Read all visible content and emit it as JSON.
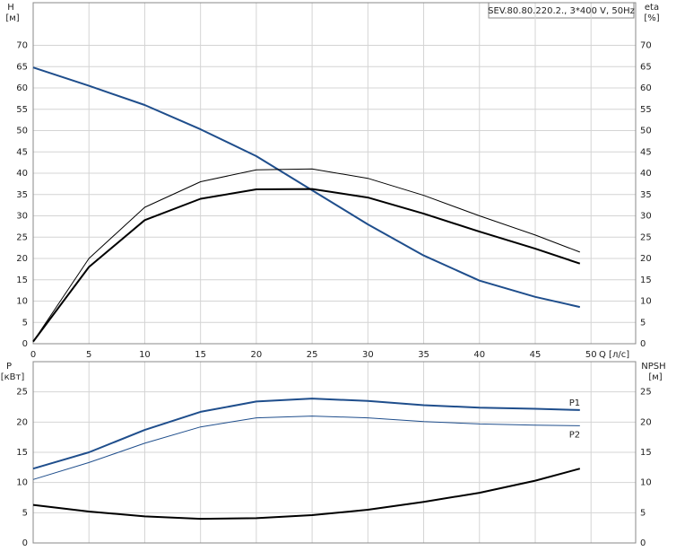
{
  "chart_data": [
    {
      "type": "line",
      "title": "SEV.80.80.220.2., 3*400 V, 50Hz",
      "y_label": "H",
      "y_unit": "[м]",
      "y2_label": "eta",
      "y2_unit": "[%]",
      "x_label": "Q [л/с]",
      "x": [
        0,
        5,
        10,
        15,
        20,
        25,
        30,
        35,
        40,
        45,
        49
      ],
      "xlim": [
        0,
        54
      ],
      "xticks": [
        0,
        5,
        10,
        15,
        20,
        25,
        30,
        35,
        40,
        45,
        50
      ],
      "ylim": [
        0,
        80
      ],
      "yticks": [
        0,
        5,
        10,
        15,
        20,
        25,
        30,
        35,
        40,
        45,
        50,
        55,
        60,
        65,
        70
      ],
      "y2lim": [
        0,
        80
      ],
      "y2ticks": [
        0,
        5,
        10,
        15,
        20,
        25,
        30,
        35,
        40,
        45,
        50,
        55,
        60,
        65,
        70
      ],
      "grid": true,
      "series": [
        {
          "color": "#1f4e8c",
          "line_width": 2,
          "values": [
            64.8,
            60.5,
            56,
            50.3,
            44,
            36,
            28,
            20.7,
            14.8,
            11,
            8.6
          ]
        },
        {
          "color": "#000000",
          "line_width": 1,
          "axis": "y2",
          "values": [
            0.5,
            20,
            32,
            38,
            40.8,
            41,
            38.8,
            34.8,
            30,
            25.5,
            21.5
          ]
        },
        {
          "color": "#000000",
          "line_width": 2,
          "axis": "y2",
          "values": [
            0.5,
            18,
            29,
            34,
            36.2,
            36.3,
            34.3,
            30.5,
            26.3,
            22.3,
            18.8
          ]
        }
      ]
    },
    {
      "type": "line",
      "y_label": "P",
      "y_unit": "[кВт]",
      "y2_label": "NPSH",
      "y2_unit": "[м]",
      "x": [
        0,
        5,
        10,
        15,
        20,
        25,
        30,
        35,
        40,
        45,
        49
      ],
      "xlim": [
        0,
        54
      ],
      "ylim": [
        0,
        30
      ],
      "yticks": [
        0,
        5,
        10,
        15,
        20,
        25
      ],
      "y2lim": [
        0,
        30
      ],
      "y2ticks": [
        0,
        5,
        10,
        15,
        20,
        25
      ],
      "grid": true,
      "series": [
        {
          "name": "P1",
          "color": "#1f4e8c",
          "line_width": 2,
          "values": [
            12.3,
            15,
            18.7,
            21.7,
            23.4,
            23.9,
            23.5,
            22.8,
            22.4,
            22.2,
            22
          ]
        },
        {
          "name": "P2",
          "color": "#1f4e8c",
          "line_width": 1,
          "values": [
            10.5,
            13.3,
            16.5,
            19.2,
            20.7,
            21,
            20.7,
            20.1,
            19.7,
            19.5,
            19.4
          ]
        },
        {
          "color": "#000000",
          "line_width": 2,
          "axis": "y2",
          "values": [
            6.3,
            5.2,
            4.4,
            4,
            4.1,
            4.6,
            5.5,
            6.8,
            8.3,
            10.3,
            12.3
          ]
        }
      ]
    }
  ]
}
